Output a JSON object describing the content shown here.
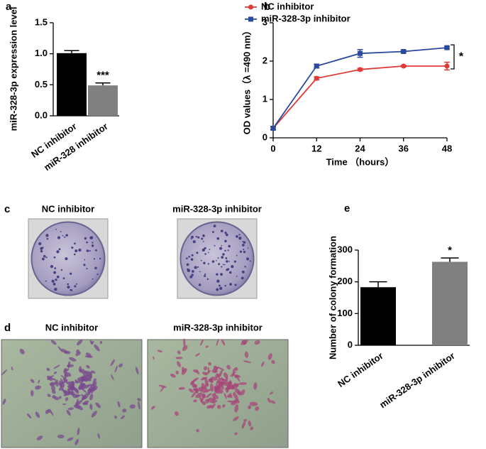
{
  "chart_data": [
    {
      "type": "bar",
      "panel": "a",
      "ylabel": "miR-328-3p expression level",
      "categories": [
        "NC inhibitor",
        "miR-328 inhibitor"
      ],
      "values": [
        1.01,
        0.49
      ],
      "errors": [
        0.04,
        0.04
      ],
      "colors": [
        "#000000",
        "#808080"
      ],
      "annotation": "***",
      "ylim": [
        0,
        1.5
      ],
      "yticks": [
        {
          "value": 0,
          "label": "0.0"
        },
        0.5,
        {
          "value": 1,
          "label": "1.0"
        },
        1.5
      ]
    },
    {
      "type": "line",
      "panel": "b",
      "ylabel": "OD values（λ =490 nm）",
      "xlabel": "Time （hours）",
      "x": [
        0,
        12,
        24,
        36,
        48
      ],
      "series": [
        {
          "name": "NC inhibitor",
          "color": "#e03a3a",
          "values": [
            0.25,
            1.55,
            1.78,
            1.87,
            1.87
          ],
          "errors": [
            0.03,
            0.04,
            0.03,
            0.02,
            0.1
          ]
        },
        {
          "name": "miR-328-3p inhibitor",
          "color": "#2b4a9e",
          "values": [
            0.25,
            1.87,
            2.2,
            2.25,
            2.35
          ],
          "errors": [
            0.04,
            0.05,
            0.1,
            0.03,
            0.03
          ]
        }
      ],
      "annotation": "*",
      "xlim": [
        0,
        48
      ],
      "xticks": [
        0,
        12,
        24,
        36,
        48
      ],
      "ylim": [
        0,
        3
      ],
      "yticks": [
        0,
        1,
        2,
        3
      ]
    },
    {
      "type": "bar",
      "panel": "e",
      "ylabel": "Number of colony formation",
      "categories": [
        "NC inhibitor",
        "miR-328-3p inhibitor"
      ],
      "values": [
        183,
        263
      ],
      "errors": [
        17,
        12
      ],
      "colors": [
        "#000000",
        "#808080"
      ],
      "annotation": "*",
      "ylim": [
        0,
        300
      ],
      "yticks": [
        0,
        100,
        200,
        300
      ]
    }
  ],
  "images": [
    {
      "panel": "c",
      "titles": [
        "NC inhibitor",
        "miR-328-3p inhibitor"
      ]
    },
    {
      "panel": "d",
      "titles": [
        "NC inhibitor",
        "miR-328-3p inhibitor"
      ]
    }
  ]
}
